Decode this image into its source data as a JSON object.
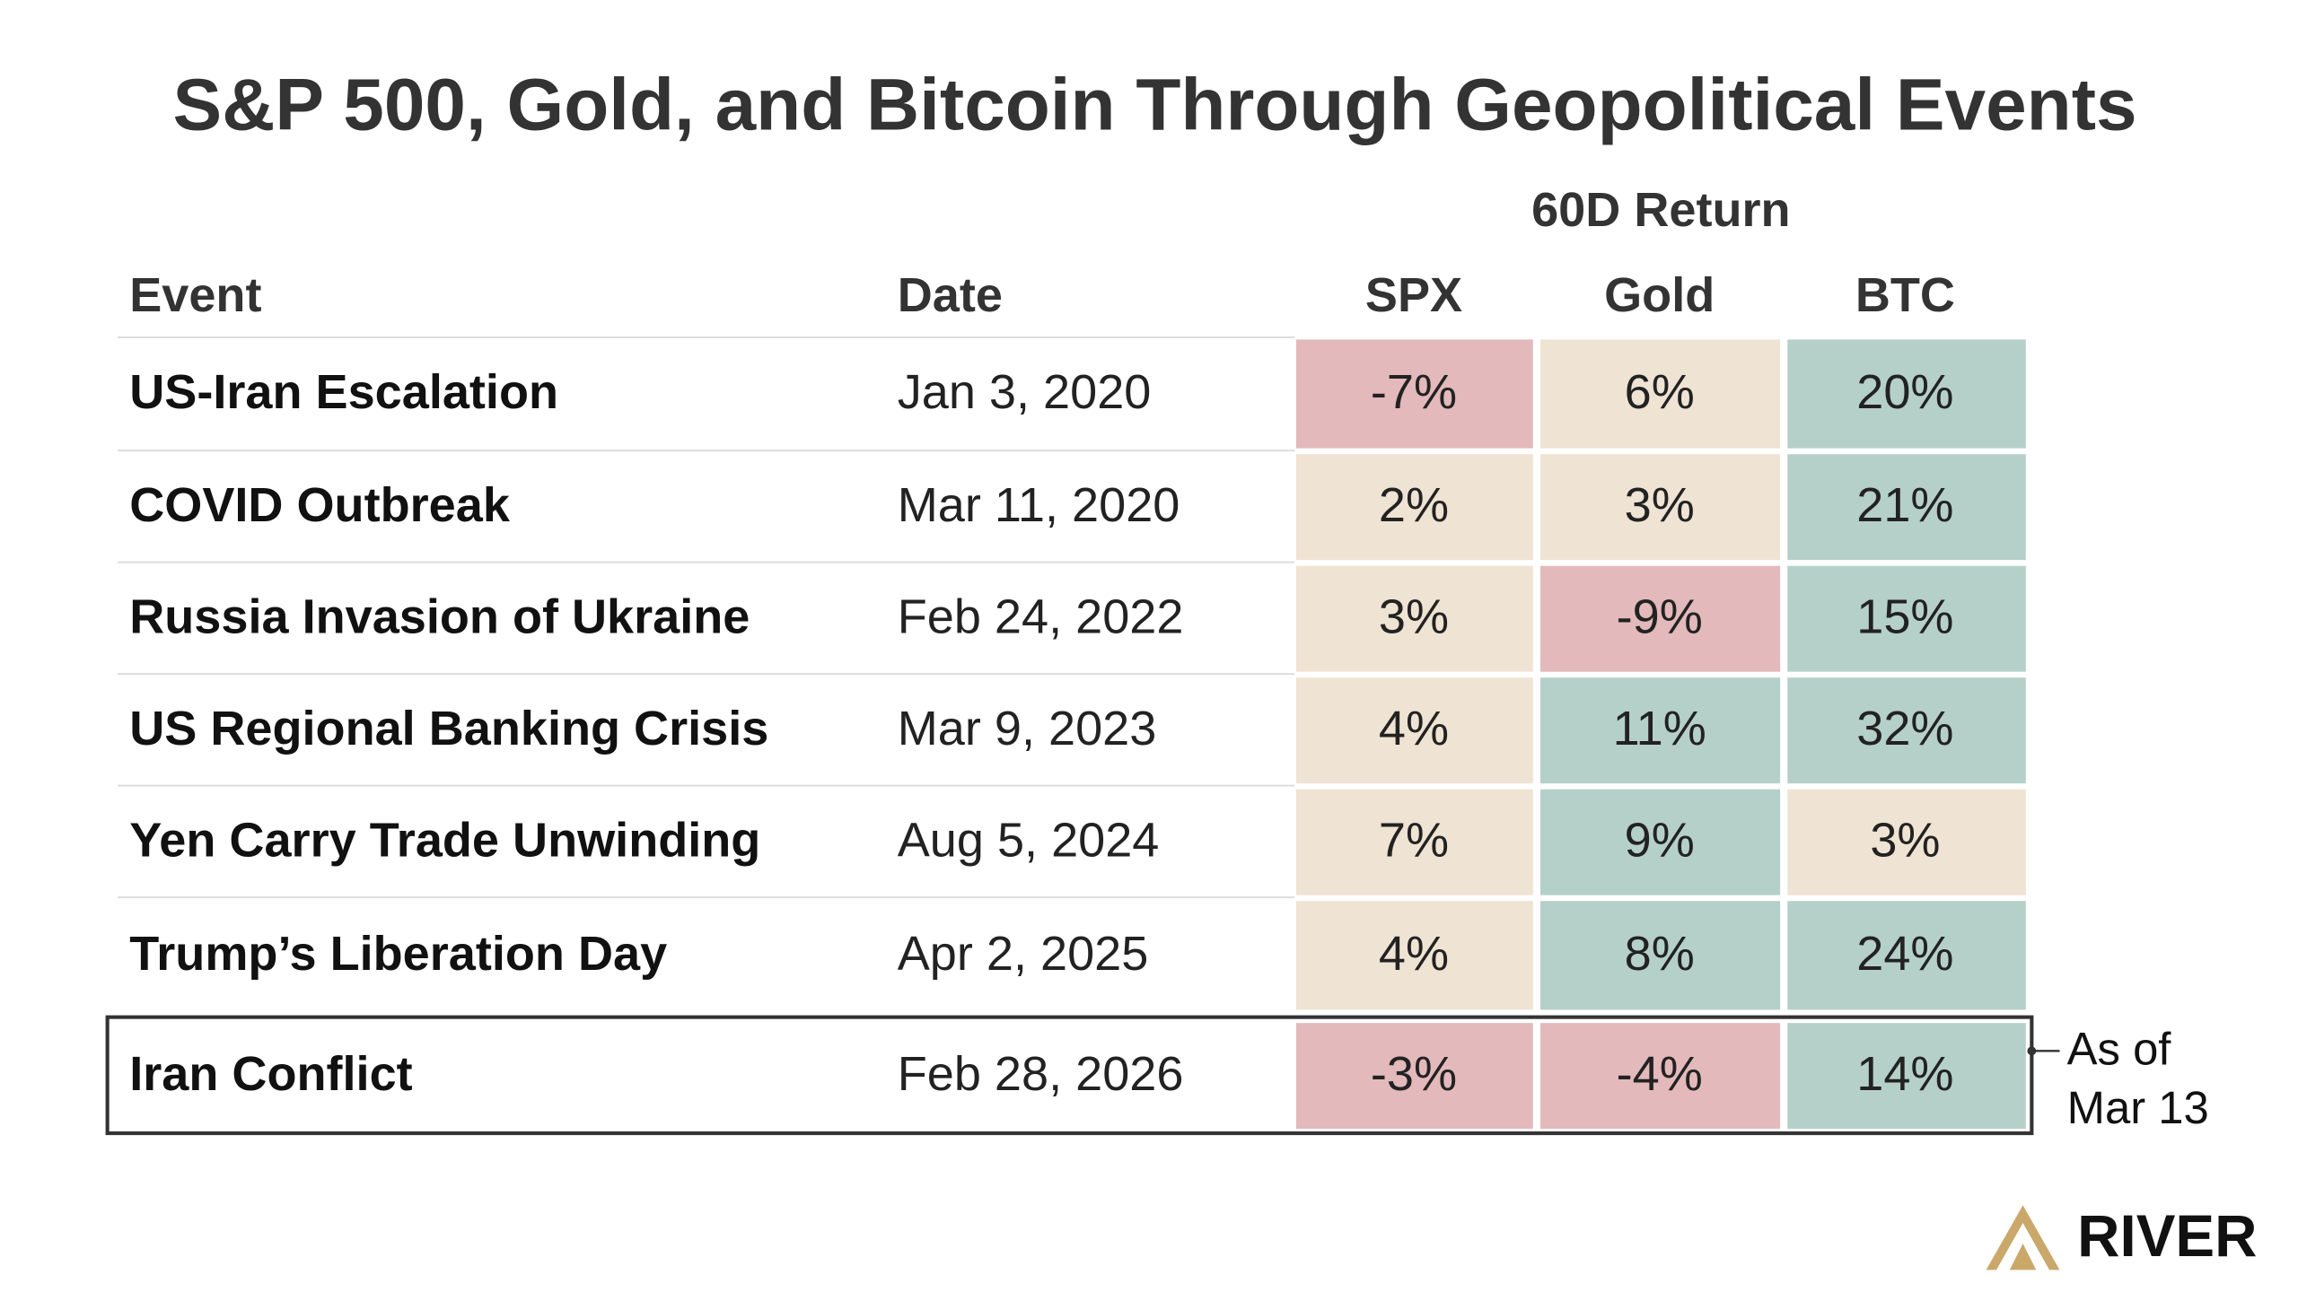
{
  "header": {
    "title": "S&P 500, Gold, and Bitcoin Through Geopolitical Events"
  },
  "table": {
    "group_header": "60D Return",
    "columns": [
      "Event",
      "Date",
      "SPX",
      "Gold",
      "BTC"
    ],
    "rows": [
      {
        "cells": [
          "US-Iran Escalation",
          "Jan 3, 2020",
          "-7%",
          "6%",
          "20%"
        ],
        "colors": [
          "#e3b9bb",
          "#efe3d3",
          "#b5d0c8"
        ]
      },
      {
        "cells": [
          "COVID Outbreak",
          "Mar 11, 2020",
          "2%",
          "3%",
          "21%"
        ],
        "colors": [
          "#efe3d3",
          "#efe3d3",
          "#b5d0c8"
        ]
      },
      {
        "cells": [
          "Russia Invasion of Ukraine",
          "Feb 24, 2022",
          "3%",
          "-9%",
          "15%"
        ],
        "colors": [
          "#efe3d3",
          "#e3b9bb",
          "#b5d0c8"
        ]
      },
      {
        "cells": [
          "US Regional Banking Crisis",
          "Mar 9, 2023",
          "4%",
          "11%",
          "32%"
        ],
        "colors": [
          "#efe3d3",
          "#b5d0c8",
          "#b5d0c8"
        ]
      },
      {
        "cells": [
          "Yen Carry Trade Unwinding",
          "Aug 5, 2024",
          "7%",
          "9%",
          "3%"
        ],
        "colors": [
          "#efe3d3",
          "#b5d0c8",
          "#efe3d3"
        ]
      },
      {
        "cells": [
          "Trump’s Liberation Day",
          "Apr 2, 2025",
          "4%",
          "8%",
          "24%"
        ],
        "colors": [
          "#efe3d3",
          "#b5d0c8",
          "#b5d0c8"
        ]
      },
      {
        "cells": [
          "Iran Conflict",
          "Feb 28, 2026",
          "-3%",
          "-4%",
          "14%"
        ],
        "colors": [
          "#e3b9bb",
          "#e3b9bb",
          "#b5d0c8"
        ]
      }
    ]
  },
  "annotation": [
    "As of",
    "Mar 13"
  ],
  "logo": "RIVER"
}
